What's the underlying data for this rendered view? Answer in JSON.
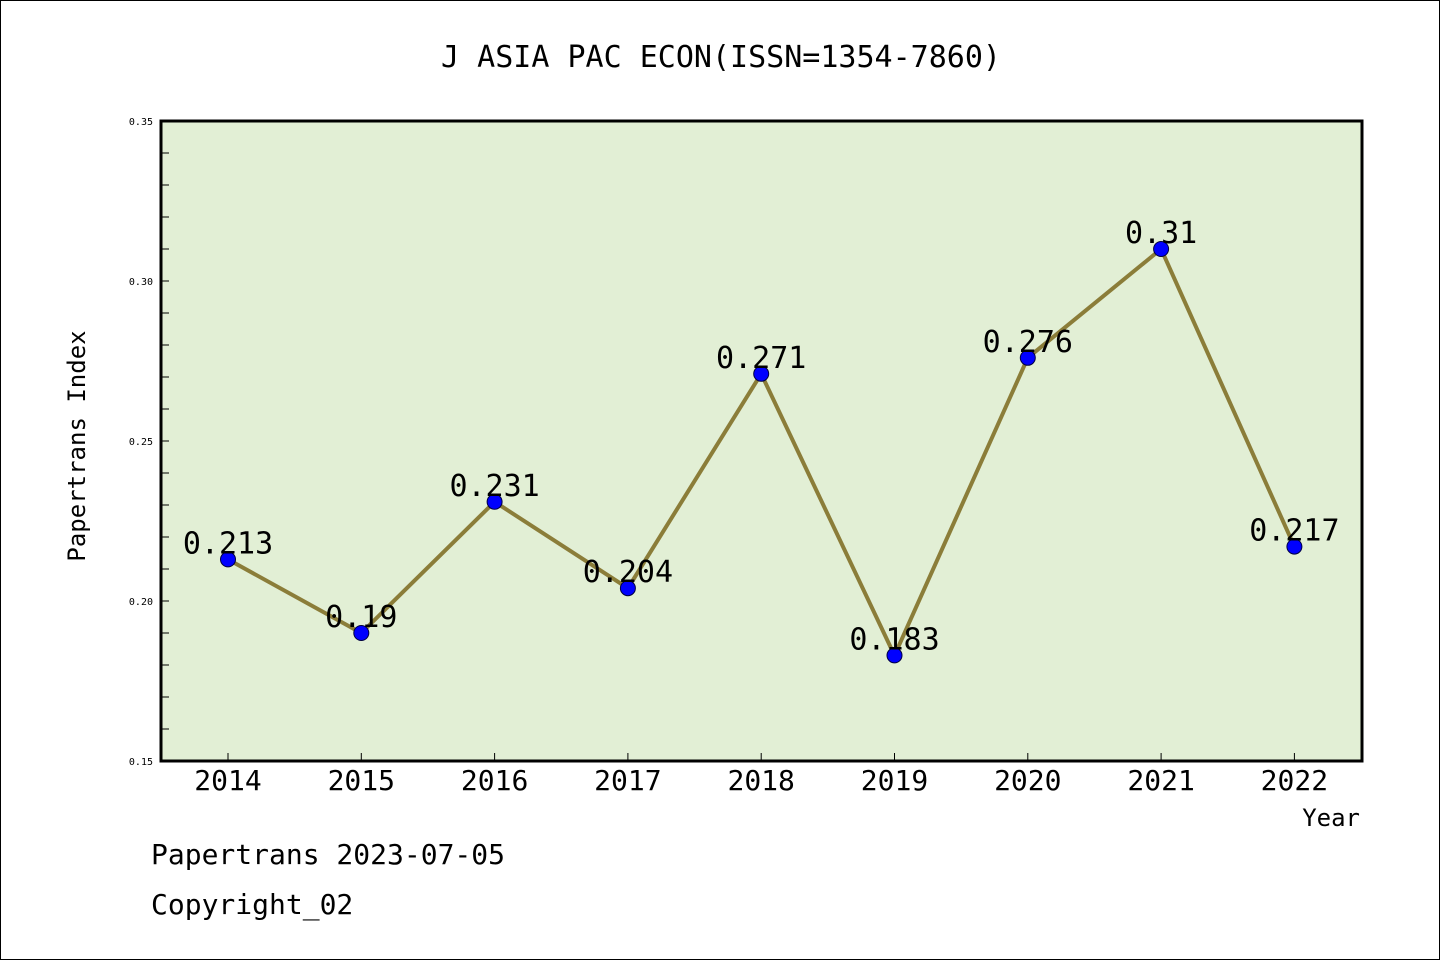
{
  "chart_data": {
    "type": "line",
    "title": "J ASIA PAC ECON(ISSN=1354-7860)",
    "xlabel": "Year",
    "ylabel": "Papertrans Index",
    "categories": [
      "2014",
      "2015",
      "2016",
      "2017",
      "2018",
      "2019",
      "2020",
      "2021",
      "2022"
    ],
    "series": [
      {
        "values": [
          0.213,
          0.19,
          0.231,
          0.204,
          0.271,
          0.183,
          0.276,
          0.31,
          0.217
        ],
        "labels": [
          "0.213",
          "0.19",
          "0.231",
          "0.204",
          "0.271",
          "0.183",
          "0.276",
          "0.31",
          "0.217"
        ]
      }
    ],
    "ylim": [
      0.15,
      0.35
    ],
    "yticks": [
      "0.15",
      "0.20",
      "0.25",
      "0.30",
      "0.35"
    ],
    "grid": false,
    "legend": "none",
    "colors": {
      "plot_background": "#e2efd5",
      "line": "#8b7d39",
      "marker": "#0000ff",
      "frame": "#000000"
    }
  },
  "footer": {
    "line1": "Papertrans 2023-07-05",
    "line2": "Copyright_02"
  }
}
